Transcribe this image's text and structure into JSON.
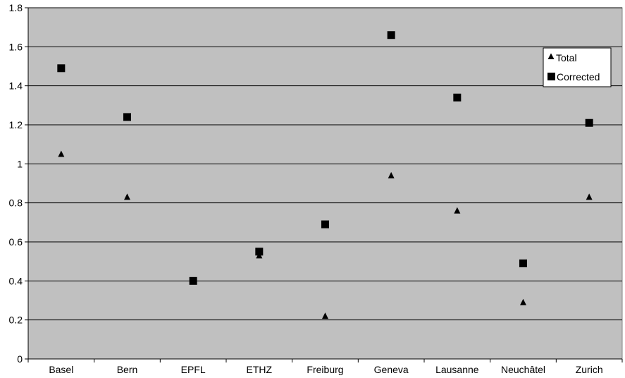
{
  "chart_data": {
    "type": "scatter",
    "title": "",
    "xlabel": "",
    "ylabel": "",
    "categories": [
      "Basel",
      "Bern",
      "EPFL",
      "ETHZ",
      "Freiburg",
      "Geneva",
      "Lausanne",
      "Neuchâtel",
      "Zurich"
    ],
    "ylim": [
      0,
      1.8
    ],
    "yticks": [
      "0",
      "0.2",
      "0.4",
      "0.6",
      "0.8",
      "1",
      "1.2",
      "1.4",
      "1.6",
      "1.8"
    ],
    "grid": true,
    "legend": "top-right",
    "plot_background": "#c0c0c0",
    "series": [
      {
        "name": "Total",
        "marker": "triangle",
        "color": "#000000",
        "values": [
          1.05,
          0.83,
          0.4,
          0.53,
          0.22,
          0.94,
          0.76,
          0.29,
          0.83
        ]
      },
      {
        "name": "Corrected",
        "marker": "square",
        "color": "#000000",
        "values": [
          1.49,
          1.24,
          0.4,
          0.55,
          0.69,
          1.66,
          1.34,
          0.49,
          1.21
        ]
      }
    ]
  }
}
